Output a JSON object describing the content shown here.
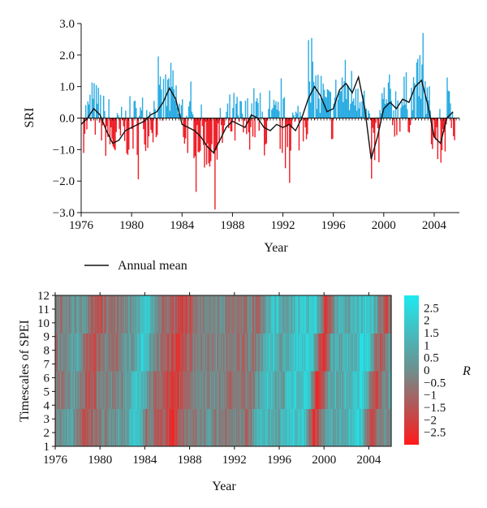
{
  "colors": {
    "positive_bar": "#29ABE2",
    "negative_bar": "#EE1C25",
    "mean_line": "#111111",
    "heat_high": "#1DE9F0",
    "heat_mid": "#6E8F8E",
    "heat_low": "#FF1A1A"
  },
  "chart_data": [
    {
      "type": "bar",
      "ylabel": "SRI",
      "xlabel": "Year",
      "xlim": [
        1976,
        2006
      ],
      "ylim": [
        -3.0,
        3.0
      ],
      "x_ticks": [
        "1976",
        "1980",
        "1984",
        "1988",
        "1992",
        "1996",
        "2000",
        "2004"
      ],
      "y_ticks": [
        "3.0",
        "2.0",
        "1.0",
        "0.0",
        "−1.0",
        "−2.0",
        "−3.0"
      ],
      "legend": {
        "label": "Annual mean",
        "placement": "bottom-left"
      },
      "series": [
        {
          "name": "Annual mean",
          "kind": "line",
          "x": [
            1976.0,
            1976.5,
            1977.0,
            1977.5,
            1978.0,
            1978.5,
            1979.0,
            1979.5,
            1980.0,
            1980.5,
            1981.0,
            1981.5,
            1982.0,
            1982.5,
            1983.0,
            1983.5,
            1984.0,
            1984.5,
            1985.0,
            1985.5,
            1986.0,
            1986.5,
            1987.0,
            1987.5,
            1988.0,
            1988.5,
            1989.0,
            1989.5,
            1990.0,
            1990.5,
            1991.0,
            1991.5,
            1992.0,
            1992.5,
            1993.0,
            1993.5,
            1994.0,
            1994.5,
            1995.0,
            1995.5,
            1996.0,
            1996.5,
            1997.0,
            1997.5,
            1998.0,
            1998.5,
            1999.0,
            1999.5,
            2000.0,
            2000.5,
            2001.0,
            2001.5,
            2002.0,
            2002.5,
            2003.0,
            2003.5,
            2004.0,
            2004.5,
            2005.0,
            2005.5
          ],
          "values": [
            -0.2,
            0.0,
            0.3,
            0.1,
            -0.4,
            -0.8,
            -0.7,
            -0.4,
            -0.3,
            -0.2,
            -0.1,
            0.1,
            0.2,
            0.5,
            0.95,
            0.6,
            -0.2,
            -0.3,
            -0.4,
            -0.6,
            -0.9,
            -1.1,
            -0.7,
            -0.3,
            -0.1,
            -0.2,
            -0.3,
            0.1,
            0.0,
            -0.3,
            -0.4,
            -0.2,
            -0.3,
            -0.2,
            -0.4,
            0.0,
            0.6,
            1.0,
            0.7,
            0.2,
            0.3,
            0.9,
            1.1,
            0.8,
            1.3,
            0.3,
            -1.3,
            -0.6,
            0.3,
            0.5,
            0.3,
            0.6,
            0.5,
            1.0,
            1.2,
            0.4,
            -0.6,
            -0.8,
            0.0,
            0.2
          ]
        }
      ]
    },
    {
      "type": "heatmap",
      "ylabel": "Timescales of SPEI",
      "xlabel": "Year",
      "xlim": [
        1976,
        2006
      ],
      "ylim": [
        1,
        12
      ],
      "x_ticks": [
        "1976",
        "1980",
        "1984",
        "1988",
        "1992",
        "1996",
        "2000",
        "2004"
      ],
      "y_ticks": [
        "1",
        "2",
        "3",
        "4",
        "5",
        "6",
        "7",
        "8",
        "9",
        "10",
        "11",
        "12"
      ],
      "colorbar": {
        "label": "R",
        "ticks": [
          "2.5",
          "2",
          "1.5",
          "1",
          "0.5",
          "0",
          "−0.5",
          "−1",
          "−1.5",
          "−2",
          "−2.5"
        ],
        "range": [
          -3.0,
          3.0
        ]
      }
    }
  ]
}
